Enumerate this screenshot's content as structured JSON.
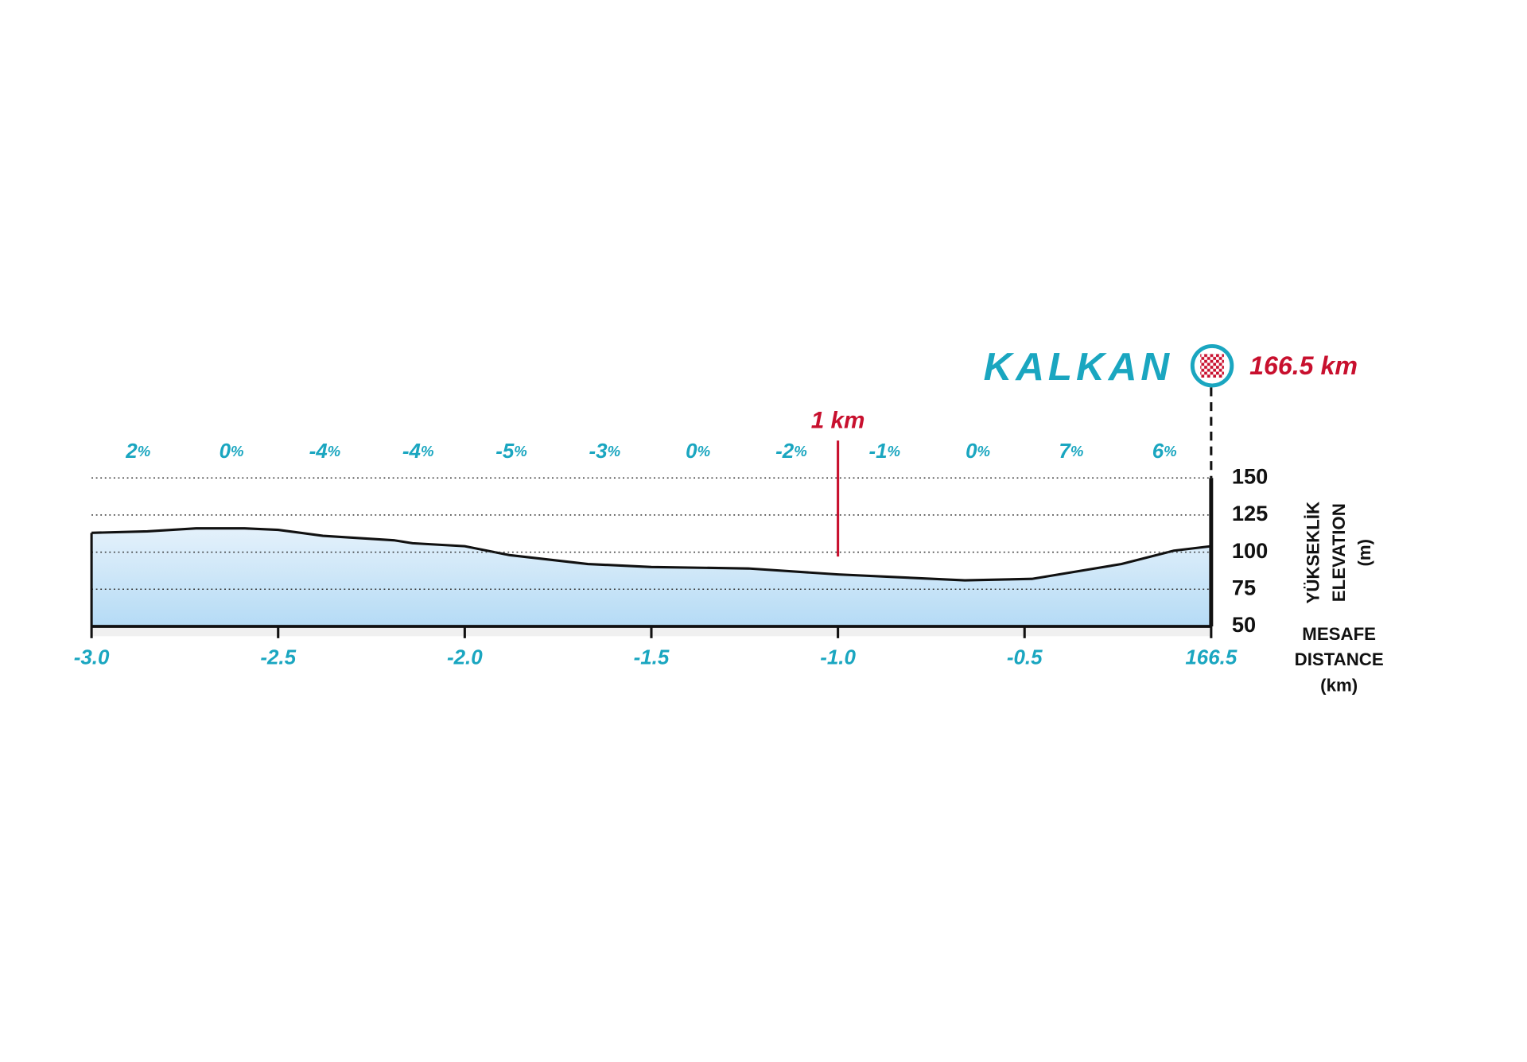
{
  "chart_data": {
    "type": "area",
    "finish": {
      "name": "KALKAN",
      "distance_label": "166.5 km"
    },
    "marker": {
      "label": "1 km",
      "x": -1
    },
    "y_axis_label": [
      "YÜKSEKLİK",
      "ELEVATION",
      "(m)"
    ],
    "x_axis_label": [
      "MESAFE",
      "DISTANCE",
      "(km)"
    ],
    "segment_gradients": [
      "2%",
      "0%",
      "-4%",
      "-4%",
      "-5%",
      "-3%",
      "0%",
      "-2%",
      "-1%",
      "0%",
      "7%",
      "6%"
    ],
    "x": [
      -3,
      -2.85,
      -2.72,
      -2.59,
      -2.5,
      -2.38,
      -2.19,
      -2.14,
      -2.0,
      -1.88,
      -1.67,
      -1.5,
      -1.24,
      -1.0,
      -0.66,
      -0.48,
      -0.24,
      -0.1,
      0
    ],
    "values": [
      113,
      114,
      116,
      116,
      115,
      111,
      108,
      106,
      104,
      98,
      92,
      90,
      89,
      85,
      81,
      82,
      92,
      101,
      104
    ],
    "color": "#111111",
    "fill": "#c9e4f7",
    "xlim": [
      -3,
      0
    ],
    "xticks": [
      {
        "value": -3,
        "label": "-3.0"
      },
      {
        "value": -2.5,
        "label": "-2.5"
      },
      {
        "value": -2,
        "label": "-2.0"
      },
      {
        "value": -1.5,
        "label": "-1.5"
      },
      {
        "value": -1,
        "label": "-1.0"
      },
      {
        "value": -0.5,
        "label": "-0.5"
      },
      {
        "value": 0,
        "label": "166.5"
      }
    ],
    "ylim": [
      50,
      150
    ],
    "yticks": [
      50,
      75,
      100,
      125,
      150
    ],
    "grid": true
  }
}
